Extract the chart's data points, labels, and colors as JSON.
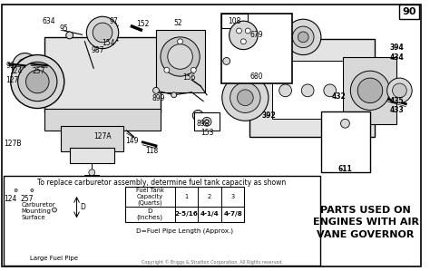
{
  "page_num": "90",
  "bg_color": "#f0f0f0",
  "border_color": "#000000",
  "parts_right_title_line1": "PARTS USED ON",
  "parts_right_title_line2": "ENGINES WITH AIR",
  "parts_right_title_line3": "VANE GOVERNOR",
  "table_header": [
    "Fuel Tank\nCapacity\n(Quarts)",
    "1",
    "2",
    "3"
  ],
  "table_data": [
    "D\n(Inches)",
    "2-5/16",
    "4-1/4",
    "4-7/8"
  ],
  "table_note": "D=Fuel Pipe Length (Approx.)",
  "table_title": "To replace carburetor assembly, determine fuel tank capacity as shown",
  "carburetor_label_lines": [
    "Carburetor",
    "Mounting",
    "Surface"
  ],
  "fuel_pipe_label": "Large Fuel Pipe",
  "copyright": "Copyright © Briggs & Stratton Corporation. All Rights reserved",
  "lc": "#000000",
  "tc": "#000000",
  "fs": 6.5,
  "fs_small": 5.5,
  "gray1": "#c8c8c8",
  "gray2": "#b0b0b0",
  "gray3": "#d8d8d8",
  "gray4": "#e4e4e4",
  "white": "#ffffff"
}
